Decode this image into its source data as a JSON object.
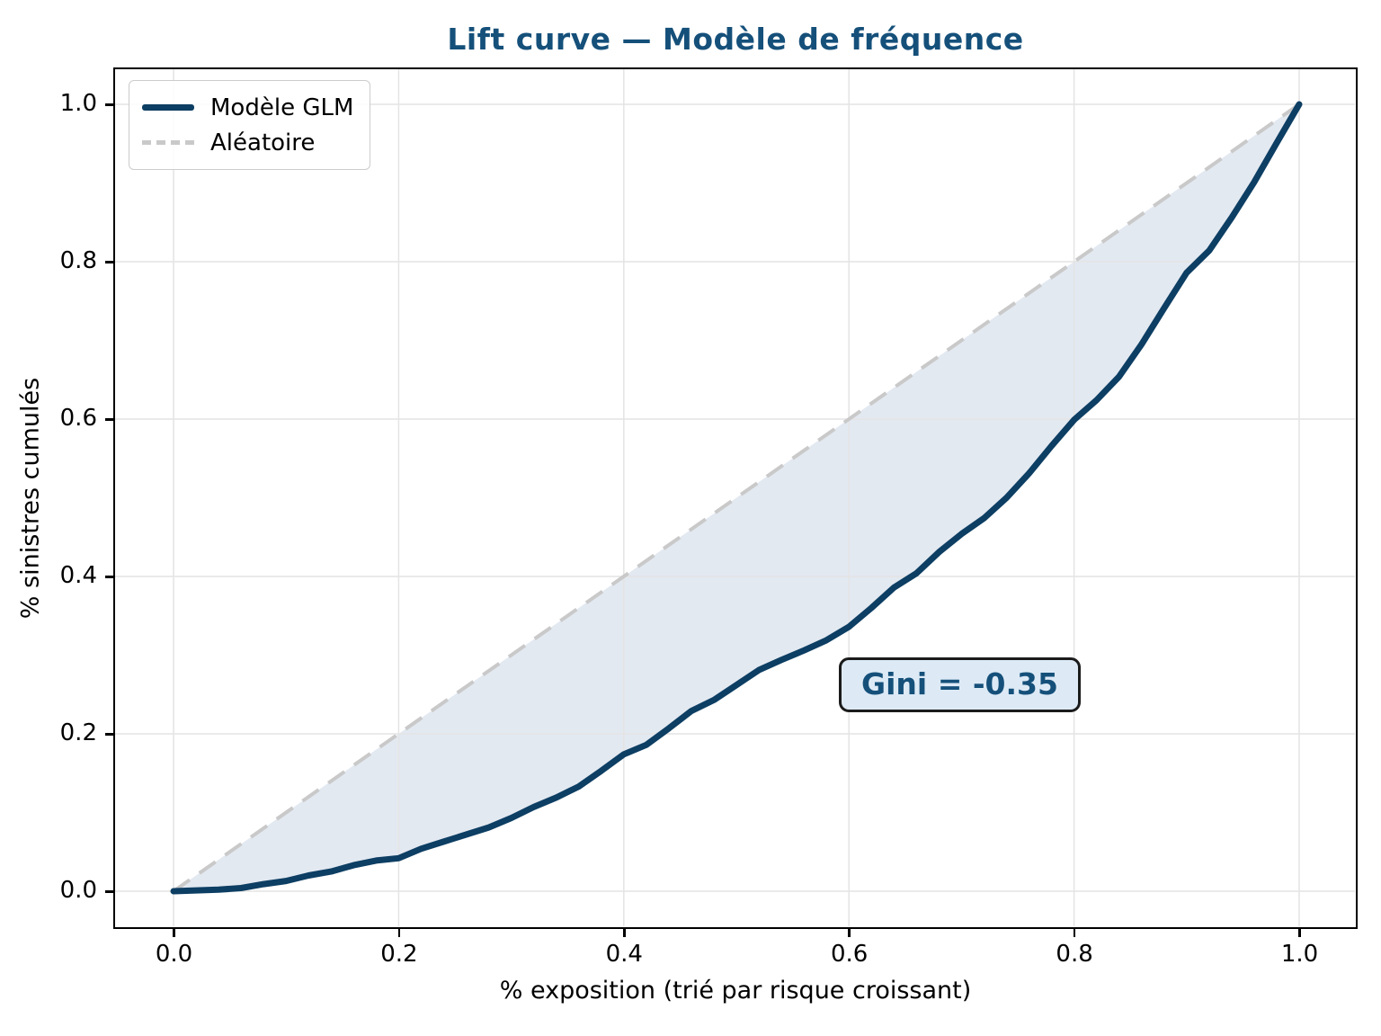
{
  "title": {
    "text": "Lift curve — Modèle de fréquence",
    "color": "#15507a"
  },
  "legend": {
    "items": [
      {
        "label": "Modèle GLM",
        "style": "solid"
      },
      {
        "label": "Aléatoire",
        "style": "dashed"
      }
    ]
  },
  "annotation": {
    "text": "Gini = -0.35",
    "bg": "#ddeaf6",
    "border_color": "#1b1b1b",
    "text_color": "#15507a"
  },
  "chart_data": {
    "type": "line",
    "title": "Lift curve — Modèle de fréquence",
    "xlabel": "% exposition (trié par risque croissant)",
    "ylabel": "% sinistres cumulés",
    "xlim": [
      -0.054,
      1.052
    ],
    "ylim": [
      -0.047,
      1.047
    ],
    "grid": true,
    "grid_color": "#e4e4e4",
    "legend_position": "upper left",
    "gini": -0.35,
    "xticks": {
      "values": [
        0.0,
        0.2,
        0.4,
        0.6,
        0.8,
        1.0
      ],
      "labels": [
        "0.0",
        "0.2",
        "0.4",
        "0.6",
        "0.8",
        "1.0"
      ]
    },
    "yticks": {
      "values": [
        0.0,
        0.2,
        0.4,
        0.6,
        0.8,
        1.0
      ],
      "labels": [
        "0.0",
        "0.2",
        "0.4",
        "0.6",
        "0.8",
        "1.0"
      ]
    },
    "fill_between": {
      "between": [
        "Modèle GLM",
        "Aléatoire"
      ],
      "color": "#e3e9f1"
    },
    "series": [
      {
        "name": "Modèle GLM",
        "color": "#0d3e63",
        "width": 7,
        "dash": null,
        "x": [
          0.0,
          0.02,
          0.04,
          0.06,
          0.08,
          0.1,
          0.12,
          0.14,
          0.16,
          0.18,
          0.2,
          0.22,
          0.24,
          0.26,
          0.28,
          0.3,
          0.32,
          0.34,
          0.36,
          0.38,
          0.4,
          0.42,
          0.44,
          0.46,
          0.48,
          0.5,
          0.52,
          0.54,
          0.56,
          0.58,
          0.6,
          0.62,
          0.64,
          0.66,
          0.68,
          0.7,
          0.72,
          0.74,
          0.76,
          0.78,
          0.8,
          0.82,
          0.84,
          0.86,
          0.88,
          0.9,
          0.92,
          0.94,
          0.96,
          0.98,
          1.0
        ],
        "y": [
          0.0,
          0.001,
          0.002,
          0.004,
          0.009,
          0.013,
          0.02,
          0.025,
          0.033,
          0.039,
          0.042,
          0.054,
          0.063,
          0.072,
          0.081,
          0.093,
          0.107,
          0.119,
          0.133,
          0.153,
          0.174,
          0.186,
          0.207,
          0.229,
          0.243,
          0.262,
          0.281,
          0.294,
          0.306,
          0.319,
          0.336,
          0.36,
          0.386,
          0.404,
          0.431,
          0.454,
          0.474,
          0.5,
          0.531,
          0.566,
          0.599,
          0.624,
          0.654,
          0.695,
          0.741,
          0.786,
          0.814,
          0.856,
          0.901,
          0.951,
          1.0
        ]
      },
      {
        "name": "Aléatoire",
        "color": "#c9c9c9",
        "width": 4,
        "dash": [
          22,
          13
        ],
        "x": [
          0.0,
          1.0
        ],
        "y": [
          0.0,
          1.0
        ]
      }
    ]
  }
}
